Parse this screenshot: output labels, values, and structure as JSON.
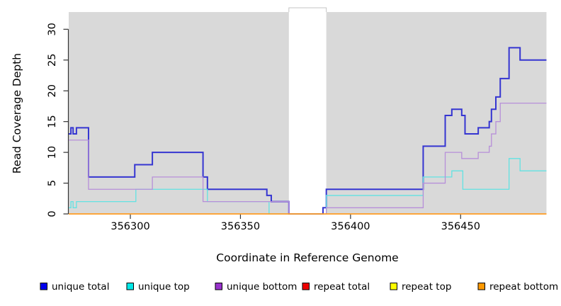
{
  "chart_data": {
    "type": "line",
    "subtype": "step",
    "title": "",
    "xlabel": "Coordinate in Reference Genome",
    "ylabel": "Read Coverage Depth",
    "xlim": [
      356272,
      356489
    ],
    "ylim": [
      0,
      32.8
    ],
    "x_ticks": [
      356300,
      356350,
      356400,
      356450
    ],
    "y_ticks": [
      0,
      5,
      10,
      15,
      20,
      25,
      30
    ],
    "grid": "off",
    "plot_bg": "#d9d9d9",
    "page_bg": "#ffffff",
    "axis_color": "#333333",
    "gap_region": {
      "start": 356372,
      "end": 356389,
      "color": "#ffffff"
    },
    "legend_position": "bottom",
    "series": [
      {
        "name": "unique total",
        "color": "#3535d1",
        "swatch": "#0000ee",
        "width": 2,
        "steps": [
          [
            356272,
            13
          ],
          [
            356273,
            14
          ],
          [
            356274,
            13
          ],
          [
            356275.5,
            14
          ],
          [
            356281,
            6
          ],
          [
            356302,
            8
          ],
          [
            356310,
            10
          ],
          [
            356333,
            6
          ],
          [
            356335,
            4
          ],
          [
            356362,
            3
          ],
          [
            356364,
            2
          ],
          [
            356372,
            0
          ],
          [
            356387.5,
            1
          ],
          [
            356389,
            4
          ],
          [
            356433,
            11
          ],
          [
            356443,
            16
          ],
          [
            356446,
            17
          ],
          [
            356450.5,
            16
          ],
          [
            356452,
            13
          ],
          [
            356458,
            14
          ],
          [
            356463,
            15
          ],
          [
            356464,
            17
          ],
          [
            356466,
            19
          ],
          [
            356468,
            22
          ],
          [
            356472,
            27
          ],
          [
            356477,
            25
          ]
        ],
        "x_end": 356489
      },
      {
        "name": "unique top",
        "color": "#62e2e2",
        "swatch": "#00e8e8",
        "width": 1.3,
        "steps": [
          [
            356272,
            1
          ],
          [
            356273,
            2
          ],
          [
            356274,
            1
          ],
          [
            356275.5,
            2
          ],
          [
            356302.5,
            4
          ],
          [
            356335,
            2
          ],
          [
            356363,
            0
          ],
          [
            356389,
            3
          ],
          [
            356433,
            6
          ],
          [
            356446,
            7
          ],
          [
            356451,
            4
          ],
          [
            356472,
            9
          ],
          [
            356477,
            7
          ]
        ],
        "x_end": 356489
      },
      {
        "name": "unique bottom",
        "color": "#b78fd9",
        "swatch": "#9933cc",
        "width": 1.3,
        "steps": [
          [
            356272,
            12
          ],
          [
            356281,
            4
          ],
          [
            356310,
            6
          ],
          [
            356333,
            2
          ],
          [
            356372,
            0
          ],
          [
            356389,
            1
          ],
          [
            356433,
            5
          ],
          [
            356443,
            10
          ],
          [
            356450.5,
            9
          ],
          [
            356458,
            10
          ],
          [
            356463,
            11
          ],
          [
            356464,
            13
          ],
          [
            356466,
            15
          ],
          [
            356468,
            18
          ]
        ],
        "x_end": 356489
      },
      {
        "name": "repeat total",
        "color": "#cc0000",
        "swatch": "#ee0000",
        "width": 1,
        "steps": [
          [
            356272,
            0
          ]
        ],
        "x_end": 356489
      },
      {
        "name": "repeat top",
        "color": "#e8e800",
        "swatch": "#ffff00",
        "width": 1,
        "steps": [
          [
            356272,
            0
          ]
        ],
        "x_end": 356489
      },
      {
        "name": "repeat bottom",
        "color": "#ff9d23",
        "swatch": "#ff9900",
        "width": 1.8,
        "steps": [
          [
            356272,
            0
          ]
        ],
        "x_end": 356489
      }
    ]
  }
}
